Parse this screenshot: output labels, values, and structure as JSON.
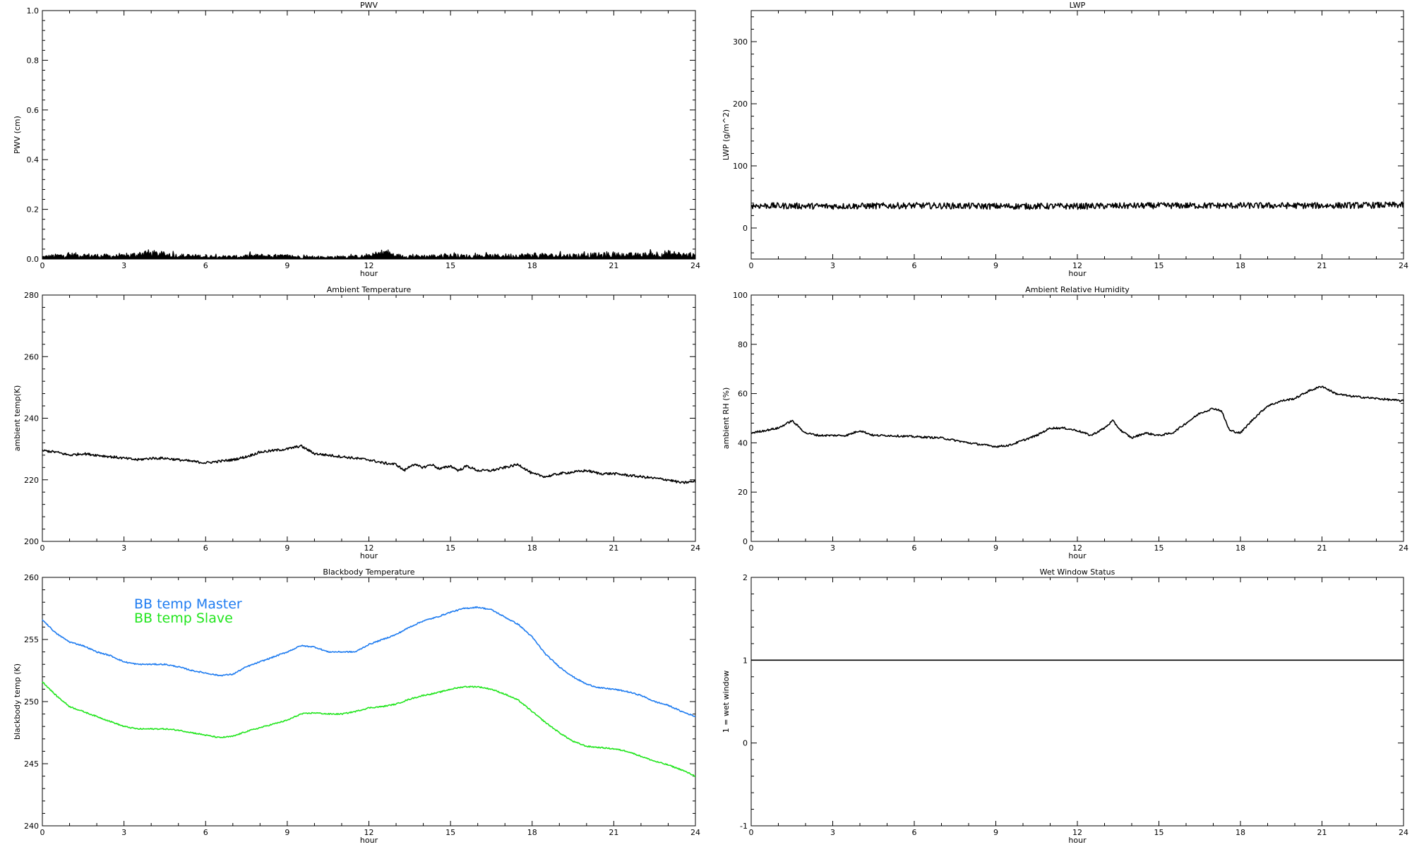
{
  "chart_data": [
    {
      "id": "pwv",
      "type": "line",
      "title": "PWV",
      "xlabel": "hour",
      "ylabel": "PWV (cm)",
      "xlim": [
        0,
        24
      ],
      "ylim": [
        0,
        1.0
      ],
      "xticks": [
        "0",
        "3",
        "6",
        "9",
        "12",
        "15",
        "18",
        "21",
        "24"
      ],
      "yticks": [
        "0.0",
        "0.2",
        "0.4",
        "0.6",
        "0.8",
        "1.0"
      ],
      "style": "spiky-noise",
      "series": [
        {
          "color": "#000000",
          "x": [
            0,
            1,
            2,
            3,
            3.8,
            4.3,
            5,
            6,
            7,
            8,
            9,
            10,
            11,
            12,
            12.6,
            13,
            14,
            15,
            16,
            17,
            18,
            19,
            20,
            21,
            22,
            22.5,
            23,
            23.5,
            24
          ],
          "y": [
            0.008,
            0.015,
            0.012,
            0.01,
            0.022,
            0.018,
            0.012,
            0.01,
            0.008,
            0.012,
            0.01,
            0.006,
            0.008,
            0.01,
            0.025,
            0.012,
            0.01,
            0.012,
            0.01,
            0.012,
            0.014,
            0.012,
            0.014,
            0.015,
            0.014,
            0.018,
            0.02,
            0.016,
            0.012
          ],
          "noise": 0.012
        }
      ]
    },
    {
      "id": "lwp",
      "type": "line",
      "title": "LWP",
      "xlabel": "hour",
      "ylabel": "LWP (g/m^2)",
      "xlim": [
        0,
        24
      ],
      "ylim": [
        -50,
        350
      ],
      "xticks": [
        "0",
        "3",
        "6",
        "9",
        "12",
        "15",
        "18",
        "21",
        "24"
      ],
      "yticks": [
        "0",
        "100",
        "200",
        "300"
      ],
      "yvals": [
        0,
        100,
        200,
        300
      ],
      "style": "noise",
      "series": [
        {
          "color": "#000000",
          "x": [
            0,
            3,
            6,
            9,
            12,
            15,
            18,
            21,
            24
          ],
          "y": [
            36,
            35,
            36,
            35,
            35,
            36,
            36,
            36,
            37
          ],
          "noise": 5
        }
      ]
    },
    {
      "id": "ambient-temp",
      "type": "line",
      "title": "Ambient Temperature",
      "xlabel": "hour",
      "ylabel": "ambient temp(K)",
      "xlim": [
        0,
        24
      ],
      "ylim": [
        200,
        280
      ],
      "xticks": [
        "0",
        "3",
        "6",
        "9",
        "12",
        "15",
        "18",
        "21",
        "24"
      ],
      "yticks": [
        "200",
        "220",
        "240",
        "260",
        "280"
      ],
      "yvals": [
        200,
        220,
        240,
        260,
        280
      ],
      "series": [
        {
          "color": "#000000",
          "x": [
            0,
            0.5,
            1,
            1.5,
            2,
            2.5,
            3,
            3.5,
            4,
            4.5,
            5,
            5.5,
            6,
            6.5,
            7,
            7.5,
            8,
            8.5,
            9,
            9.5,
            10,
            10.5,
            11,
            11.5,
            12,
            12.5,
            13,
            13.3,
            13.6,
            14,
            14.3,
            14.6,
            15,
            15.3,
            15.6,
            16,
            16.5,
            17,
            17.5,
            18,
            18.5,
            19,
            19.5,
            20,
            20.5,
            21,
            21.5,
            22,
            22.5,
            23,
            23.5,
            24
          ],
          "y": [
            229.5,
            229,
            228,
            228.5,
            228,
            227.5,
            227,
            226.5,
            227,
            227,
            226.5,
            226,
            225.5,
            226,
            226.5,
            227.5,
            229,
            229.5,
            230,
            231,
            228.5,
            228,
            227.5,
            227,
            226.5,
            225.5,
            225,
            223,
            225,
            224,
            225,
            223.5,
            224.5,
            223,
            224.5,
            223,
            223,
            224,
            225,
            222,
            221,
            222,
            222.5,
            223,
            222,
            222,
            221.5,
            221,
            220.5,
            220,
            219,
            219.5
          ],
          "noise": 0.4
        }
      ]
    },
    {
      "id": "ambient-rh",
      "type": "line",
      "title": "Ambient Relative Humidity",
      "xlabel": "hour",
      "ylabel": "ambient RH (%)",
      "xlim": [
        0,
        24
      ],
      "ylim": [
        0,
        100
      ],
      "xticks": [
        "0",
        "3",
        "6",
        "9",
        "12",
        "15",
        "18",
        "21",
        "24"
      ],
      "yticks": [
        "0",
        "20",
        "40",
        "60",
        "80",
        "100"
      ],
      "yvals": [
        0,
        20,
        40,
        60,
        80,
        100
      ],
      "series": [
        {
          "color": "#000000",
          "x": [
            0,
            0.5,
            1,
            1.5,
            1.7,
            2,
            2.5,
            3,
            3.5,
            4,
            4.5,
            5,
            6,
            7,
            8,
            9,
            9.5,
            10,
            10.5,
            11,
            11.5,
            12,
            12.5,
            13,
            13.3,
            13.6,
            14,
            14.5,
            15,
            15.5,
            16,
            16.5,
            17,
            17.3,
            17.6,
            18,
            18.5,
            19,
            19.5,
            20,
            20.5,
            21,
            21.5,
            22,
            23,
            24
          ],
          "y": [
            44,
            45,
            46,
            49,
            47,
            44,
            43,
            43,
            43,
            45,
            43,
            43,
            42.5,
            42,
            40,
            38.5,
            39,
            41,
            43,
            46,
            46,
            45,
            43,
            46,
            49,
            45,
            42,
            44,
            43,
            44,
            48,
            52,
            54,
            53,
            45,
            44,
            50,
            55,
            57,
            58,
            61,
            63,
            60,
            59,
            58,
            57
          ],
          "noise": 0.4
        }
      ]
    },
    {
      "id": "blackbody-temp",
      "type": "line",
      "title": "Blackbody Temperature",
      "xlabel": "hour",
      "ylabel": "blackbody temp (K)",
      "xlim": [
        0,
        24
      ],
      "ylim": [
        240,
        260
      ],
      "xticks": [
        "0",
        "3",
        "6",
        "9",
        "12",
        "15",
        "18",
        "21",
        "24"
      ],
      "yticks": [
        "240",
        "245",
        "250",
        "255",
        "260"
      ],
      "yvals": [
        240,
        245,
        250,
        255,
        260
      ],
      "legend_position": "top-left",
      "series": [
        {
          "name": "BB temp Master",
          "color": "#1f7cf0",
          "x": [
            0,
            0.5,
            1,
            1.5,
            2,
            2.5,
            3,
            3.5,
            4,
            4.5,
            5,
            5.5,
            6,
            6.5,
            7,
            7.5,
            8,
            8.5,
            9,
            9.5,
            10,
            10.5,
            11,
            11.5,
            12,
            12.5,
            13,
            13.5,
            14,
            14.5,
            15,
            15.5,
            16,
            16.5,
            17,
            17.5,
            18,
            18.5,
            19,
            19.5,
            20,
            20.5,
            21,
            21.5,
            22,
            22.5,
            23,
            23.5,
            24
          ],
          "y": [
            256.6,
            255.5,
            254.8,
            254.5,
            254,
            253.7,
            253.2,
            253,
            253,
            253,
            252.8,
            252.5,
            252.3,
            252.1,
            252.2,
            252.8,
            253.2,
            253.6,
            254,
            254.5,
            254.4,
            254,
            254,
            254,
            254.6,
            255,
            255.4,
            256,
            256.5,
            256.8,
            257.2,
            257.5,
            257.6,
            257.4,
            256.8,
            256.2,
            255.2,
            253.8,
            252.8,
            252,
            251.4,
            251.1,
            251,
            250.8,
            250.5,
            250,
            249.7,
            249.2,
            248.8
          ],
          "noise": 0.05
        },
        {
          "name": "BB temp Slave",
          "color": "#22e51e",
          "x": [
            0,
            0.5,
            1,
            1.5,
            2,
            2.5,
            3,
            3.5,
            4,
            4.5,
            5,
            5.5,
            6,
            6.5,
            7,
            7.5,
            8,
            8.5,
            9,
            9.5,
            10,
            10.5,
            11,
            11.5,
            12,
            12.5,
            13,
            13.5,
            14,
            14.5,
            15,
            15.5,
            16,
            16.5,
            17,
            17.5,
            18,
            18.5,
            19,
            19.5,
            20,
            20.5,
            21,
            21.5,
            22,
            22.5,
            23,
            23.5,
            24
          ],
          "y": [
            251.6,
            250.5,
            249.6,
            249.2,
            248.8,
            248.4,
            248,
            247.8,
            247.8,
            247.8,
            247.7,
            247.5,
            247.3,
            247.1,
            247.2,
            247.6,
            247.9,
            248.2,
            248.5,
            249,
            249.1,
            249,
            249,
            249.2,
            249.5,
            249.6,
            249.8,
            250.2,
            250.5,
            250.7,
            251,
            251.2,
            251.2,
            251,
            250.6,
            250.1,
            249.2,
            248.3,
            247.5,
            246.8,
            246.4,
            246.3,
            246.2,
            246,
            245.6,
            245.2,
            244.9,
            244.5,
            244
          ],
          "noise": 0.05
        }
      ]
    },
    {
      "id": "wet-window",
      "type": "line",
      "title": "Wet Window Status",
      "xlabel": "hour",
      "ylabel": "1 = wet window",
      "xlim": [
        0,
        24
      ],
      "ylim": [
        -1,
        2
      ],
      "xticks": [
        "0",
        "3",
        "6",
        "9",
        "12",
        "15",
        "18",
        "21",
        "24"
      ],
      "yticks": [
        "-1",
        "0",
        "1",
        "2"
      ],
      "yvals": [
        -1,
        0,
        1,
        2
      ],
      "series": [
        {
          "color": "#000000",
          "x": [
            0,
            24
          ],
          "y": [
            1,
            1
          ],
          "noise": 0
        }
      ]
    }
  ]
}
